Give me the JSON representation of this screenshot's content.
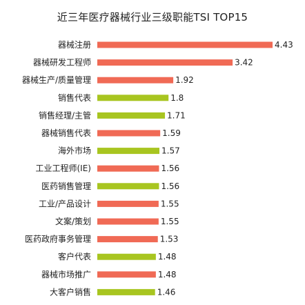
{
  "chart_data": {
    "type": "bar",
    "orientation": "horizontal",
    "title": "近三年医疗器械行业三级职能TSI TOP15",
    "categories": [
      "器械注册",
      "器械研发工程师",
      "器械生产/质量管理",
      "销售代表",
      "销售经理/主管",
      "器械销售代表",
      "海外市场",
      "工业工程师(IE)",
      "医药销售管理",
      "工业/产品设计",
      "文案/策划",
      "医药政府事务管理",
      "客户代表",
      "器械市场推广",
      "大客户销售"
    ],
    "values": [
      4.43,
      3.42,
      1.92,
      1.8,
      1.71,
      1.59,
      1.57,
      1.56,
      1.56,
      1.55,
      1.55,
      1.53,
      1.48,
      1.48,
      1.46
    ],
    "value_labels": [
      "4.43",
      "3.42",
      "1.92",
      "1.8",
      "1.71",
      "1.59",
      "1.57",
      "1.56",
      "1.56",
      "1.55",
      "1.55",
      "1.53",
      "1.48",
      "1.48",
      "1.46"
    ],
    "bar_colors": [
      "#f06a55",
      "#f06a55",
      "#f06a55",
      "#a8c520",
      "#a8c520",
      "#f06a55",
      "#a8c520",
      "#f06a55",
      "#a8c520",
      "#f06a55",
      "#f06a55",
      "#f06a55",
      "#a8c520",
      "#f06a55",
      "#a8c520"
    ],
    "xlim": [
      0,
      4.43
    ],
    "grid": false,
    "legend": "none"
  }
}
